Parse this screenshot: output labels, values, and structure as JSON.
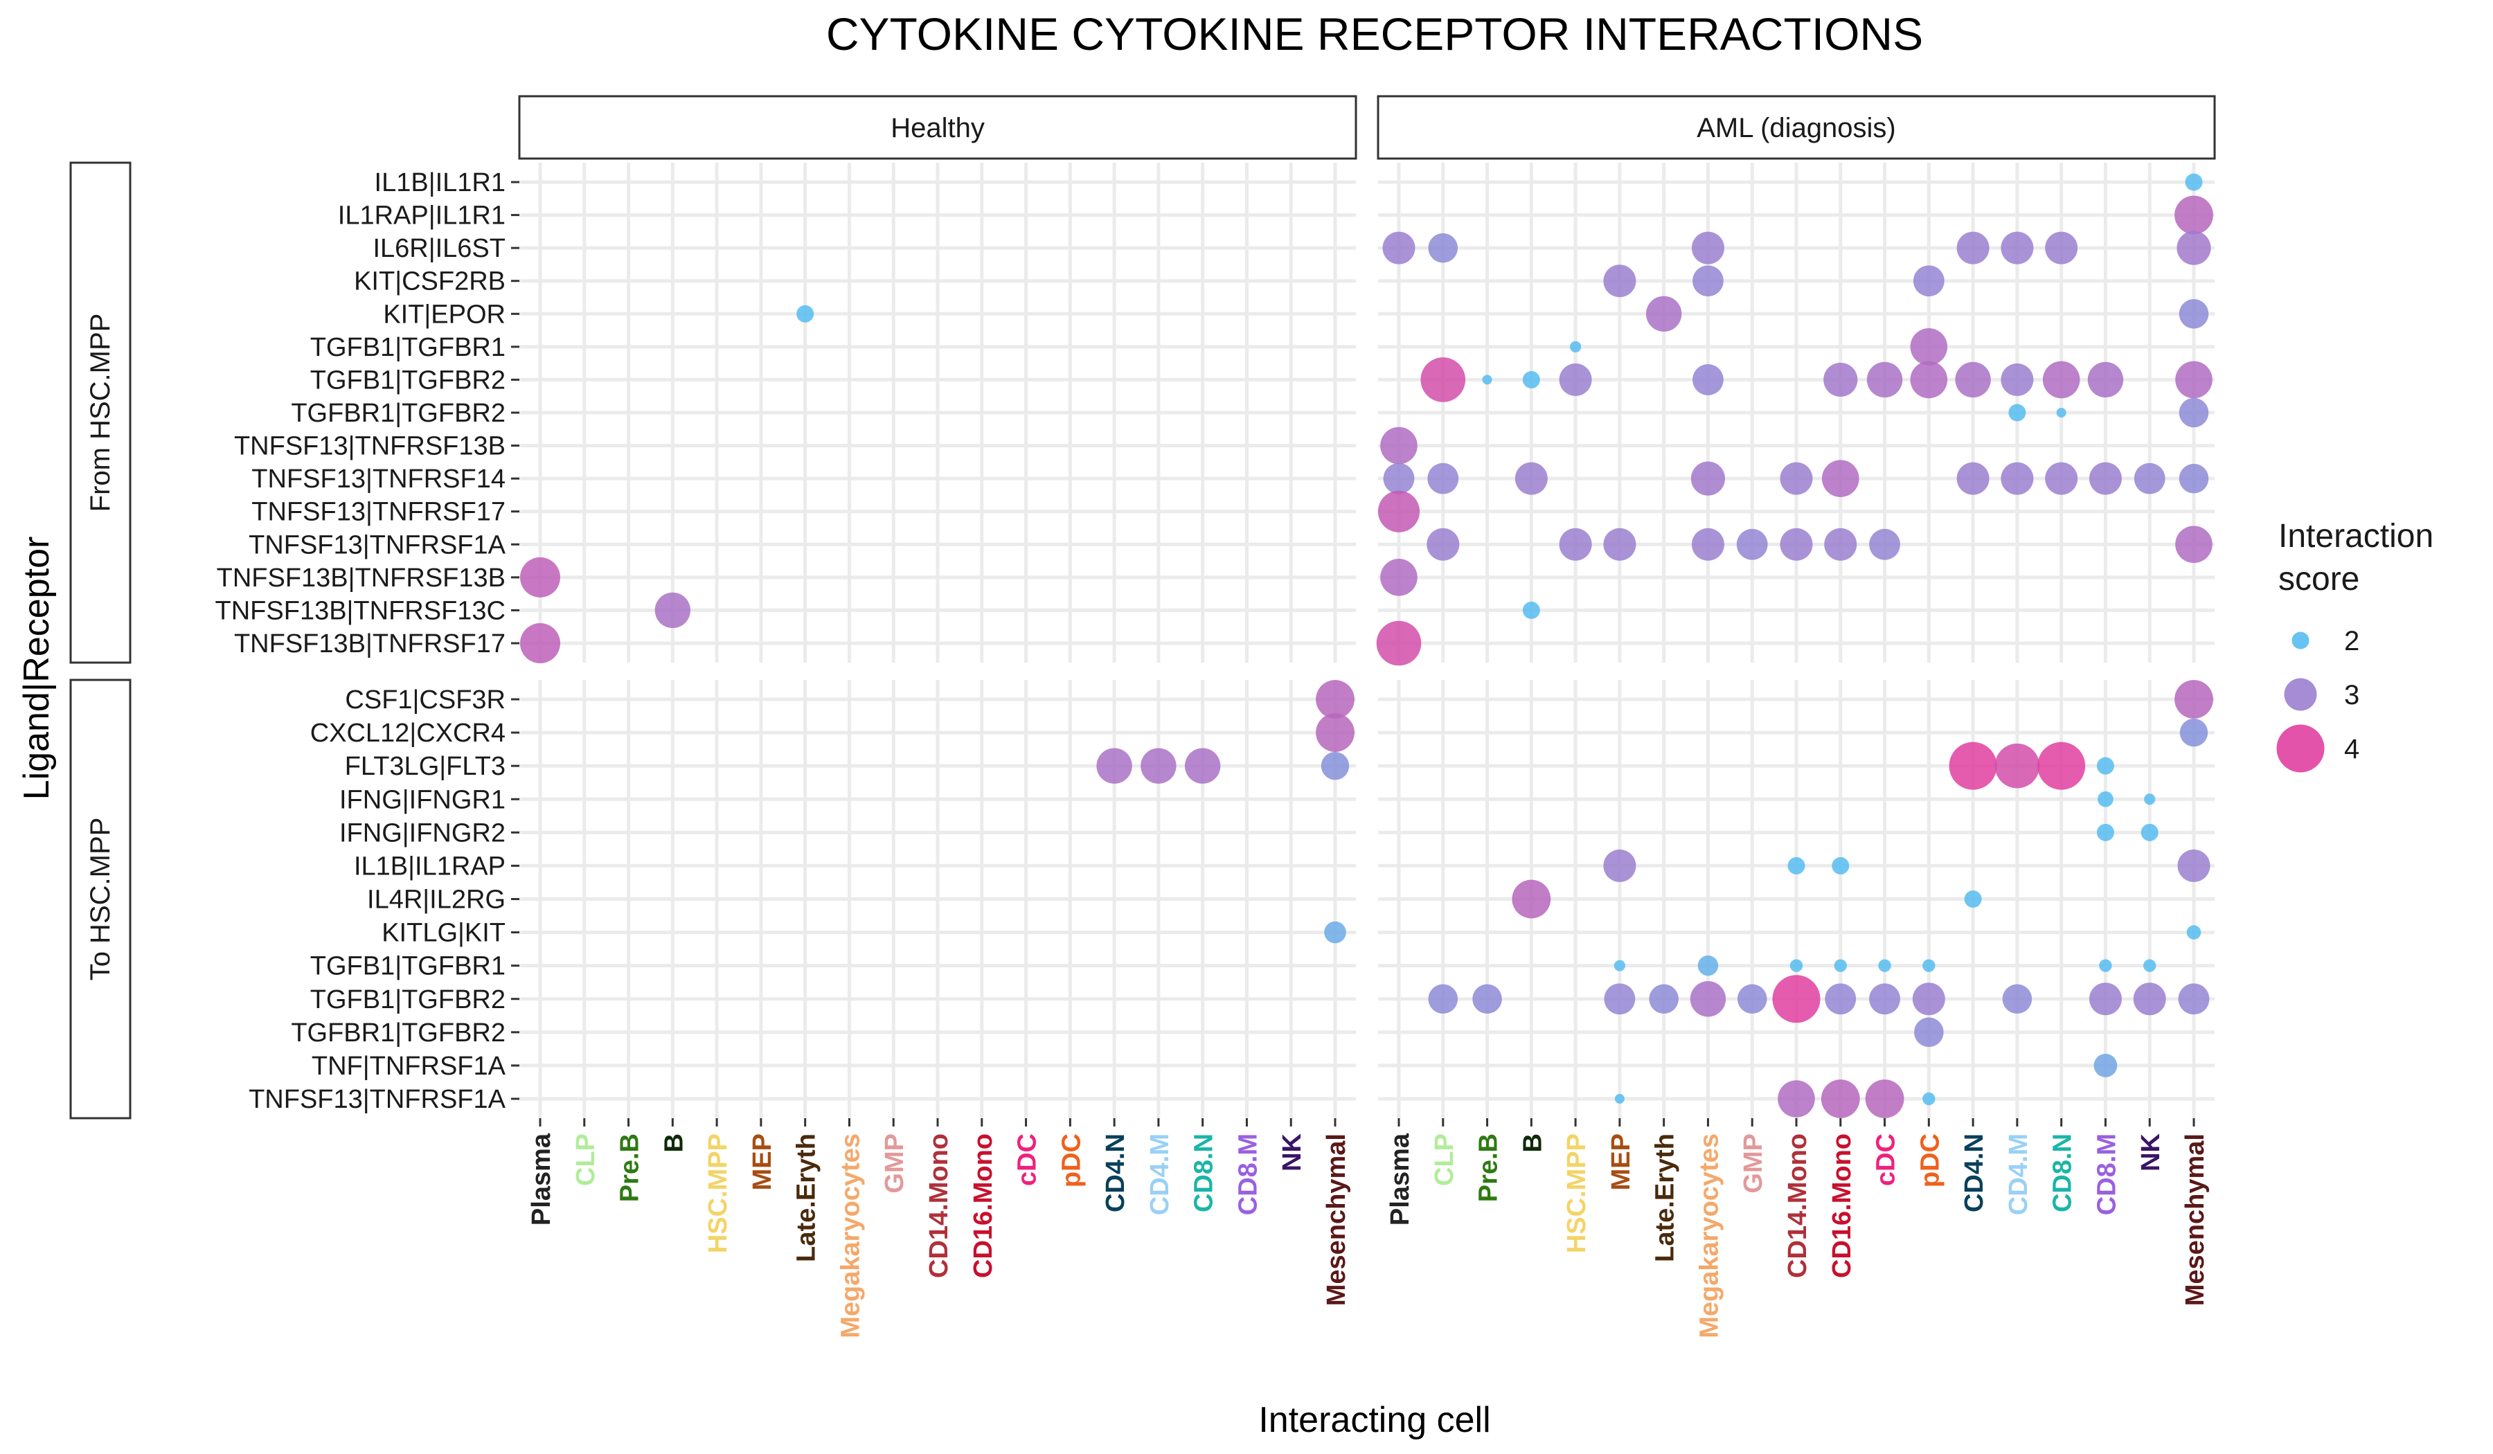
{
  "chart_data": {
    "type": "scatter",
    "title": "CYTOKINE CYTOKINE RECEPTOR INTERACTIONS",
    "xlabel": "Interacting cell",
    "ylabel": "Ligand|Receptor",
    "grid": true,
    "legend_position": "right",
    "legend": {
      "title_lines": [
        "Interaction",
        "score"
      ],
      "entries": [
        {
          "label": "2",
          "value": 2,
          "color": "#56BCF0"
        },
        {
          "label": "3",
          "value": 3,
          "color": "#9B7FD0"
        },
        {
          "label": "4",
          "value": 4,
          "color": "#E040A0"
        }
      ]
    },
    "color_scale": {
      "low": "#56BCF0",
      "mid": "#9B7FD0",
      "high": "#E040A0",
      "min": 2,
      "mid_value": 3,
      "max": 4
    },
    "columns": [
      {
        "label": "Healthy"
      },
      {
        "label": "AML (diagnosis)"
      }
    ],
    "rows": [
      {
        "label": "From HSC.MPP",
        "y": [
          "IL1B|IL1R1",
          "IL1RAP|IL1R1",
          "IL6R|IL6ST",
          "KIT|CSF2RB",
          "KIT|EPOR",
          "TGFB1|TGFBR1",
          "TGFB1|TGFBR2",
          "TGFBR1|TGFBR2",
          "TNFSF13|TNFRSF13B",
          "TNFSF13|TNFRSF14",
          "TNFSF13|TNFRSF17",
          "TNFSF13|TNFRSF1A",
          "TNFSF13B|TNFRSF13B",
          "TNFSF13B|TNFRSF13C",
          "TNFSF13B|TNFRSF17"
        ]
      },
      {
        "label": "To HSC.MPP",
        "y": [
          "CSF1|CSF3R",
          "CXCL12|CXCR4",
          "FLT3LG|FLT3",
          "IFNG|IFNGR1",
          "IFNG|IFNGR2",
          "IL1B|IL1RAP",
          "IL4R|IL2RG",
          "KITLG|KIT",
          "TGFB1|TGFBR1",
          "TGFB1|TGFBR2",
          "TGFBR1|TGFBR2",
          "TNF|TNFRSF1A",
          "TNFSF13|TNFRSF1A"
        ]
      }
    ],
    "x_categories": [
      {
        "label": "Plasma",
        "color": "#222222"
      },
      {
        "label": "CLP",
        "color": "#B2EC9A"
      },
      {
        "label": "Pre.B",
        "color": "#2E7A12"
      },
      {
        "label": "B",
        "color": "#0E2A08"
      },
      {
        "label": "HSC.MPP",
        "color": "#F3D467"
      },
      {
        "label": "MEP",
        "color": "#A84D12"
      },
      {
        "label": "Late.Eryth",
        "color": "#4A2A0C"
      },
      {
        "label": "Megakaryocytes",
        "color": "#F4A86A"
      },
      {
        "label": "GMP",
        "color": "#E2999A"
      },
      {
        "label": "CD14.Mono",
        "color": "#B0303A"
      },
      {
        "label": "CD16.Mono",
        "color": "#C8102E"
      },
      {
        "label": "cDC",
        "color": "#F0207E"
      },
      {
        "label": "pDC",
        "color": "#F0601C"
      },
      {
        "label": "CD4.N",
        "color": "#08405A"
      },
      {
        "label": "CD4.M",
        "color": "#9AD0F5"
      },
      {
        "label": "CD8.N",
        "color": "#1AB5A8"
      },
      {
        "label": "CD8.M",
        "color": "#9A60E0"
      },
      {
        "label": "NK",
        "color": "#3A1466"
      },
      {
        "label": "Mesenchymal",
        "color": "#5A1818"
      }
    ],
    "points": [
      {
        "col": 0,
        "row": 0,
        "x": "Late.Eryth",
        "y": "KIT|EPOR",
        "score": 2.0
      },
      {
        "col": 0,
        "row": 0,
        "x": "Plasma",
        "y": "TNFSF13B|TNFRSF13B",
        "score": 3.5
      },
      {
        "col": 0,
        "row": 0,
        "x": "B",
        "y": "TNFSF13B|TNFRSF13C",
        "score": 3.2
      },
      {
        "col": 0,
        "row": 0,
        "x": "Plasma",
        "y": "TNFSF13B|TNFRSF17",
        "score": 3.5
      },
      {
        "col": 1,
        "row": 0,
        "x": "Mesenchymal",
        "y": "IL1B|IL1R1",
        "score": 2.0
      },
      {
        "col": 1,
        "row": 0,
        "x": "Mesenchymal",
        "y": "IL1RAP|IL1R1",
        "score": 3.4
      },
      {
        "col": 1,
        "row": 0,
        "x": "Plasma",
        "y": "IL6R|IL6ST",
        "score": 3.0
      },
      {
        "col": 1,
        "row": 0,
        "x": "CLP",
        "y": "IL6R|IL6ST",
        "score": 2.8
      },
      {
        "col": 1,
        "row": 0,
        "x": "Megakaryocytes",
        "y": "IL6R|IL6ST",
        "score": 3.0
      },
      {
        "col": 1,
        "row": 0,
        "x": "CD4.N",
        "y": "IL6R|IL6ST",
        "score": 3.0
      },
      {
        "col": 1,
        "row": 0,
        "x": "CD4.M",
        "y": "IL6R|IL6ST",
        "score": 3.0
      },
      {
        "col": 1,
        "row": 0,
        "x": "CD8.N",
        "y": "IL6R|IL6ST",
        "score": 3.0
      },
      {
        "col": 1,
        "row": 0,
        "x": "Mesenchymal",
        "y": "IL6R|IL6ST",
        "score": 3.1
      },
      {
        "col": 1,
        "row": 0,
        "x": "MEP",
        "y": "KIT|CSF2RB",
        "score": 3.0
      },
      {
        "col": 1,
        "row": 0,
        "x": "Megakaryocytes",
        "y": "KIT|CSF2RB",
        "score": 2.9
      },
      {
        "col": 1,
        "row": 0,
        "x": "pDC",
        "y": "KIT|CSF2RB",
        "score": 2.9
      },
      {
        "col": 1,
        "row": 0,
        "x": "Late.Eryth",
        "y": "KIT|EPOR",
        "score": 3.2
      },
      {
        "col": 1,
        "row": 0,
        "x": "Mesenchymal",
        "y": "KIT|EPOR",
        "score": 2.8
      },
      {
        "col": 1,
        "row": 0,
        "x": "HSC.MPP",
        "y": "TGFB1|TGFBR1",
        "score": 1.6
      },
      {
        "col": 1,
        "row": 0,
        "x": "pDC",
        "y": "TGFB1|TGFBR1",
        "score": 3.3
      },
      {
        "col": 1,
        "row": 0,
        "x": "CLP",
        "y": "TGFB1|TGFBR2",
        "score": 3.8
      },
      {
        "col": 1,
        "row": 0,
        "x": "Pre.B",
        "y": "TGFB1|TGFBR2",
        "score": 1.5
      },
      {
        "col": 1,
        "row": 0,
        "x": "B",
        "y": "TGFB1|TGFBR2",
        "score": 2.0
      },
      {
        "col": 1,
        "row": 0,
        "x": "HSC.MPP",
        "y": "TGFB1|TGFBR2",
        "score": 3.0
      },
      {
        "col": 1,
        "row": 0,
        "x": "Megakaryocytes",
        "y": "TGFB1|TGFBR2",
        "score": 2.9
      },
      {
        "col": 1,
        "row": 0,
        "x": "CD16.Mono",
        "y": "TGFB1|TGFBR2",
        "score": 3.1
      },
      {
        "col": 1,
        "row": 0,
        "x": "cDC",
        "y": "TGFB1|TGFBR2",
        "score": 3.2
      },
      {
        "col": 1,
        "row": 0,
        "x": "pDC",
        "y": "TGFB1|TGFBR2",
        "score": 3.3
      },
      {
        "col": 1,
        "row": 0,
        "x": "CD4.N",
        "y": "TGFB1|TGFBR2",
        "score": 3.2
      },
      {
        "col": 1,
        "row": 0,
        "x": "CD4.M",
        "y": "TGFB1|TGFBR2",
        "score": 3.0
      },
      {
        "col": 1,
        "row": 0,
        "x": "CD8.N",
        "y": "TGFB1|TGFBR2",
        "score": 3.3
      },
      {
        "col": 1,
        "row": 0,
        "x": "CD8.M",
        "y": "TGFB1|TGFBR2",
        "score": 3.2
      },
      {
        "col": 1,
        "row": 0,
        "x": "Mesenchymal",
        "y": "TGFB1|TGFBR2",
        "score": 3.3
      },
      {
        "col": 1,
        "row": 0,
        "x": "CD4.M",
        "y": "TGFBR1|TGFBR2",
        "score": 2.0
      },
      {
        "col": 1,
        "row": 0,
        "x": "CD8.N",
        "y": "TGFBR1|TGFBR2",
        "score": 1.5
      },
      {
        "col": 1,
        "row": 0,
        "x": "Mesenchymal",
        "y": "TGFBR1|TGFBR2",
        "score": 2.8
      },
      {
        "col": 1,
        "row": 0,
        "x": "Plasma",
        "y": "TNFSF13|TNFRSF13B",
        "score": 3.3
      },
      {
        "col": 1,
        "row": 0,
        "x": "Plasma",
        "y": "TNFSF13|TNFRSF14",
        "score": 2.9
      },
      {
        "col": 1,
        "row": 0,
        "x": "CLP",
        "y": "TNFSF13|TNFRSF14",
        "score": 2.9
      },
      {
        "col": 1,
        "row": 0,
        "x": "B",
        "y": "TNFSF13|TNFRSF14",
        "score": 3.0
      },
      {
        "col": 1,
        "row": 0,
        "x": "Megakaryocytes",
        "y": "TNFSF13|TNFRSF14",
        "score": 3.1
      },
      {
        "col": 1,
        "row": 0,
        "x": "CD14.Mono",
        "y": "TNFSF13|TNFRSF14",
        "score": 3.0
      },
      {
        "col": 1,
        "row": 0,
        "x": "CD16.Mono",
        "y": "TNFSF13|TNFRSF14",
        "score": 3.3
      },
      {
        "col": 1,
        "row": 0,
        "x": "CD4.N",
        "y": "TNFSF13|TNFRSF14",
        "score": 3.0
      },
      {
        "col": 1,
        "row": 0,
        "x": "CD4.M",
        "y": "TNFSF13|TNFRSF14",
        "score": 3.0
      },
      {
        "col": 1,
        "row": 0,
        "x": "CD8.N",
        "y": "TNFSF13|TNFRSF14",
        "score": 3.0
      },
      {
        "col": 1,
        "row": 0,
        "x": "CD8.M",
        "y": "TNFSF13|TNFRSF14",
        "score": 3.0
      },
      {
        "col": 1,
        "row": 0,
        "x": "NK",
        "y": "TNFSF13|TNFRSF14",
        "score": 2.9
      },
      {
        "col": 1,
        "row": 0,
        "x": "Mesenchymal",
        "y": "TNFSF13|TNFRSF14",
        "score": 2.8
      },
      {
        "col": 1,
        "row": 0,
        "x": "Plasma",
        "y": "TNFSF13|TNFRSF17",
        "score": 3.6
      },
      {
        "col": 1,
        "row": 0,
        "x": "CLP",
        "y": "TNFSF13|TNFRSF1A",
        "score": 3.0
      },
      {
        "col": 1,
        "row": 0,
        "x": "HSC.MPP",
        "y": "TNFSF13|TNFRSF1A",
        "score": 3.0
      },
      {
        "col": 1,
        "row": 0,
        "x": "MEP",
        "y": "TNFSF13|TNFRSF1A",
        "score": 3.0
      },
      {
        "col": 1,
        "row": 0,
        "x": "Megakaryocytes",
        "y": "TNFSF13|TNFRSF1A",
        "score": 3.0
      },
      {
        "col": 1,
        "row": 0,
        "x": "GMP",
        "y": "TNFSF13|TNFRSF1A",
        "score": 2.9
      },
      {
        "col": 1,
        "row": 0,
        "x": "CD14.Mono",
        "y": "TNFSF13|TNFRSF1A",
        "score": 3.0
      },
      {
        "col": 1,
        "row": 0,
        "x": "CD16.Mono",
        "y": "TNFSF13|TNFRSF1A",
        "score": 3.0
      },
      {
        "col": 1,
        "row": 0,
        "x": "cDC",
        "y": "TNFSF13|TNFRSF1A",
        "score": 2.9
      },
      {
        "col": 1,
        "row": 0,
        "x": "Mesenchymal",
        "y": "TNFSF13|TNFRSF1A",
        "score": 3.3
      },
      {
        "col": 1,
        "row": 0,
        "x": "Plasma",
        "y": "TNFSF13B|TNFRSF13B",
        "score": 3.3
      },
      {
        "col": 1,
        "row": 0,
        "x": "B",
        "y": "TNFSF13B|TNFRSF13C",
        "score": 2.0
      },
      {
        "col": 1,
        "row": 0,
        "x": "Plasma",
        "y": "TNFSF13B|TNFRSF17",
        "score": 3.8
      },
      {
        "col": 0,
        "row": 1,
        "x": "Mesenchymal",
        "y": "CSF1|CSF3R",
        "score": 3.4
      },
      {
        "col": 0,
        "row": 1,
        "x": "Mesenchymal",
        "y": "CXCL12|CXCR4",
        "score": 3.4
      },
      {
        "col": 0,
        "row": 1,
        "x": "CD4.N",
        "y": "FLT3LG|FLT3",
        "score": 3.2
      },
      {
        "col": 0,
        "row": 1,
        "x": "CD4.M",
        "y": "FLT3LG|FLT3",
        "score": 3.2
      },
      {
        "col": 0,
        "row": 1,
        "x": "CD8.N",
        "y": "FLT3LG|FLT3",
        "score": 3.2
      },
      {
        "col": 0,
        "row": 1,
        "x": "Mesenchymal",
        "y": "FLT3LG|FLT3",
        "score": 2.7
      },
      {
        "col": 0,
        "row": 1,
        "x": "Mesenchymal",
        "y": "KITLG|KIT",
        "score": 2.3
      },
      {
        "col": 1,
        "row": 1,
        "x": "Mesenchymal",
        "y": "CSF1|CSF3R",
        "score": 3.4
      },
      {
        "col": 1,
        "row": 1,
        "x": "Mesenchymal",
        "y": "CXCL12|CXCR4",
        "score": 2.7
      },
      {
        "col": 1,
        "row": 1,
        "x": "CD4.N",
        "y": "FLT3LG|FLT3",
        "score": 4.0
      },
      {
        "col": 1,
        "row": 1,
        "x": "CD4.M",
        "y": "FLT3LG|FLT3",
        "score": 3.8
      },
      {
        "col": 1,
        "row": 1,
        "x": "CD8.N",
        "y": "FLT3LG|FLT3",
        "score": 4.0
      },
      {
        "col": 1,
        "row": 1,
        "x": "CD8.M",
        "y": "FLT3LG|FLT3",
        "score": 2.0
      },
      {
        "col": 1,
        "row": 1,
        "x": "CD8.M",
        "y": "IFNG|IFNGR1",
        "score": 1.9
      },
      {
        "col": 1,
        "row": 1,
        "x": "NK",
        "y": "IFNG|IFNGR1",
        "score": 1.6
      },
      {
        "col": 1,
        "row": 1,
        "x": "CD8.M",
        "y": "IFNG|IFNGR2",
        "score": 2.0
      },
      {
        "col": 1,
        "row": 1,
        "x": "NK",
        "y": "IFNG|IFNGR2",
        "score": 2.0
      },
      {
        "col": 1,
        "row": 1,
        "x": "MEP",
        "y": "IL1B|IL1RAP",
        "score": 3.0
      },
      {
        "col": 1,
        "row": 1,
        "x": "CD14.Mono",
        "y": "IL1B|IL1RAP",
        "score": 2.0
      },
      {
        "col": 1,
        "row": 1,
        "x": "CD16.Mono",
        "y": "IL1B|IL1RAP",
        "score": 2.0
      },
      {
        "col": 1,
        "row": 1,
        "x": "Mesenchymal",
        "y": "IL1B|IL1RAP",
        "score": 3.0
      },
      {
        "col": 1,
        "row": 1,
        "x": "B",
        "y": "IL4R|IL2RG",
        "score": 3.4
      },
      {
        "col": 1,
        "row": 1,
        "x": "CD4.N",
        "y": "IL4R|IL2RG",
        "score": 2.0
      },
      {
        "col": 1,
        "row": 1,
        "x": "Mesenchymal",
        "y": "KITLG|KIT",
        "score": 1.8
      },
      {
        "col": 1,
        "row": 1,
        "x": "MEP",
        "y": "TGFB1|TGFBR1",
        "score": 1.6
      },
      {
        "col": 1,
        "row": 1,
        "x": "Megakaryocytes",
        "y": "TGFB1|TGFBR1",
        "score": 2.2
      },
      {
        "col": 1,
        "row": 1,
        "x": "CD14.Mono",
        "y": "TGFB1|TGFBR1",
        "score": 1.7
      },
      {
        "col": 1,
        "row": 1,
        "x": "CD16.Mono",
        "y": "TGFB1|TGFBR1",
        "score": 1.7
      },
      {
        "col": 1,
        "row": 1,
        "x": "cDC",
        "y": "TGFB1|TGFBR1",
        "score": 1.7
      },
      {
        "col": 1,
        "row": 1,
        "x": "pDC",
        "y": "TGFB1|TGFBR1",
        "score": 1.7
      },
      {
        "col": 1,
        "row": 1,
        "x": "CD8.M",
        "y": "TGFB1|TGFBR1",
        "score": 1.7
      },
      {
        "col": 1,
        "row": 1,
        "x": "NK",
        "y": "TGFB1|TGFBR1",
        "score": 1.7
      },
      {
        "col": 1,
        "row": 1,
        "x": "CLP",
        "y": "TGFB1|TGFBR2",
        "score": 2.8
      },
      {
        "col": 1,
        "row": 1,
        "x": "Pre.B",
        "y": "TGFB1|TGFBR2",
        "score": 2.8
      },
      {
        "col": 1,
        "row": 1,
        "x": "MEP",
        "y": "TGFB1|TGFBR2",
        "score": 2.9
      },
      {
        "col": 1,
        "row": 1,
        "x": "Late.Eryth",
        "y": "TGFB1|TGFBR2",
        "score": 2.8
      },
      {
        "col": 1,
        "row": 1,
        "x": "Megakaryocytes",
        "y": "TGFB1|TGFBR2",
        "score": 3.2
      },
      {
        "col": 1,
        "row": 1,
        "x": "GMP",
        "y": "TGFB1|TGFBR2",
        "score": 2.8
      },
      {
        "col": 1,
        "row": 1,
        "x": "CD14.Mono",
        "y": "TGFB1|TGFBR2",
        "score": 4.0
      },
      {
        "col": 1,
        "row": 1,
        "x": "CD16.Mono",
        "y": "TGFB1|TGFBR2",
        "score": 2.9
      },
      {
        "col": 1,
        "row": 1,
        "x": "cDC",
        "y": "TGFB1|TGFBR2",
        "score": 2.9
      },
      {
        "col": 1,
        "row": 1,
        "x": "pDC",
        "y": "TGFB1|TGFBR2",
        "score": 3.0
      },
      {
        "col": 1,
        "row": 1,
        "x": "CD4.M",
        "y": "TGFB1|TGFBR2",
        "score": 2.8
      },
      {
        "col": 1,
        "row": 1,
        "x": "CD8.M",
        "y": "TGFB1|TGFBR2",
        "score": 3.0
      },
      {
        "col": 1,
        "row": 1,
        "x": "NK",
        "y": "TGFB1|TGFBR2",
        "score": 3.0
      },
      {
        "col": 1,
        "row": 1,
        "x": "Mesenchymal",
        "y": "TGFB1|TGFBR2",
        "score": 2.9
      },
      {
        "col": 1,
        "row": 1,
        "x": "pDC",
        "y": "TGFBR1|TGFBR2",
        "score": 2.8
      },
      {
        "col": 1,
        "row": 1,
        "x": "CD8.M",
        "y": "TNF|TNFRSF1A",
        "score": 2.4
      },
      {
        "col": 1,
        "row": 1,
        "x": "MEP",
        "y": "TNFSF13|TNFRSF1A",
        "score": 1.5
      },
      {
        "col": 1,
        "row": 1,
        "x": "CD14.Mono",
        "y": "TNFSF13|TNFRSF1A",
        "score": 3.3
      },
      {
        "col": 1,
        "row": 1,
        "x": "CD16.Mono",
        "y": "TNFSF13|TNFRSF1A",
        "score": 3.4
      },
      {
        "col": 1,
        "row": 1,
        "x": "cDC",
        "y": "TNFSF13|TNFRSF1A",
        "score": 3.4
      },
      {
        "col": 1,
        "row": 1,
        "x": "pDC",
        "y": "TNFSF13|TNFRSF1A",
        "score": 1.7
      }
    ]
  }
}
